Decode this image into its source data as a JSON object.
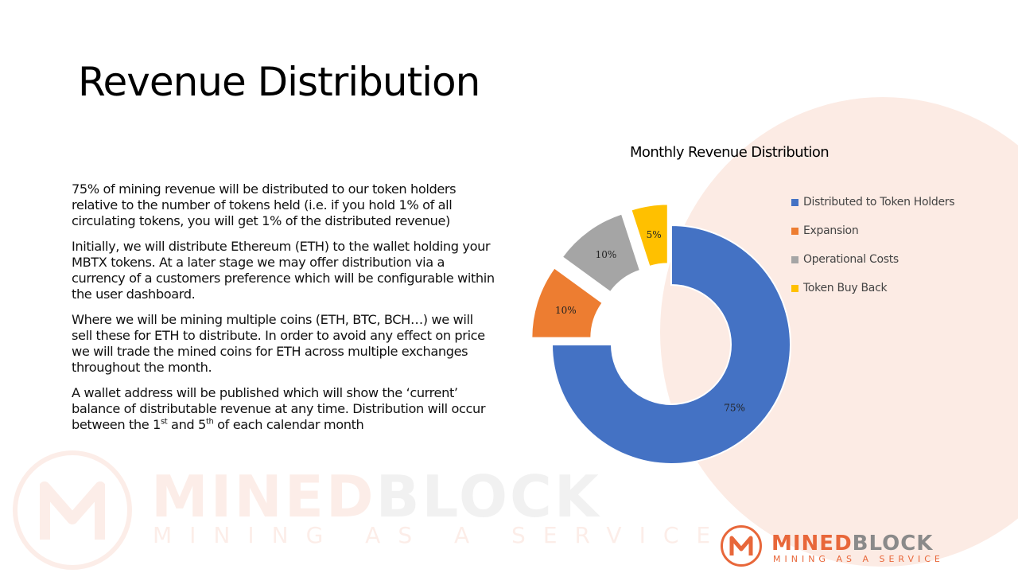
{
  "slide": {
    "title": "Revenue Distribution",
    "paragraphs": [
      "75% of mining revenue will be distributed to our token holders relative to the number of tokens held (i.e. if you hold 1% of all circulating tokens, you will get 1% of the distributed revenue)",
      "Initially, we will distribute Ethereum (ETH) to the wallet holding your MBTX tokens. At a later stage we may offer distribution via a currency of a customers preference which will be configurable within the user dashboard.",
      "Where we will be mining multiple coins (ETH, BTC, BCH…) we will sell these for ETH to distribute. In order to avoid any effect on price we will trade the mined coins for ETH across multiple exchanges throughout the month."
    ],
    "last_paragraph": {
      "part1": "A wallet address will be published which will show the ‘current’ balance of distributable revenue at any time. Distribution will occur between the 1",
      "sup1": "st",
      "part2": " and 5",
      "sup2": "th",
      "part3": " of each calendar month"
    }
  },
  "branding": {
    "word_orange": "MINED",
    "word_grey": "BLOCK",
    "tagline": "MINING AS A SERVICE",
    "orange": "#e8673a",
    "grey": "#8a8a8a"
  },
  "chart_data": {
    "type": "pie",
    "variant": "donut-exploded",
    "title": "Monthly Revenue Distribution",
    "legend_position": "right",
    "slices": [
      {
        "name": "Distributed to Token Holders",
        "value": 75,
        "label": "75%",
        "color": "#4472c4"
      },
      {
        "name": "Expansion",
        "value": 10,
        "label": "10%",
        "color": "#ed7d31"
      },
      {
        "name": "Operational Costs",
        "value": 10,
        "label": "10%",
        "color": "#a5a5a5"
      },
      {
        "name": "Token Buy Back",
        "value": 5,
        "label": "5%",
        "color": "#ffc000"
      }
    ]
  }
}
